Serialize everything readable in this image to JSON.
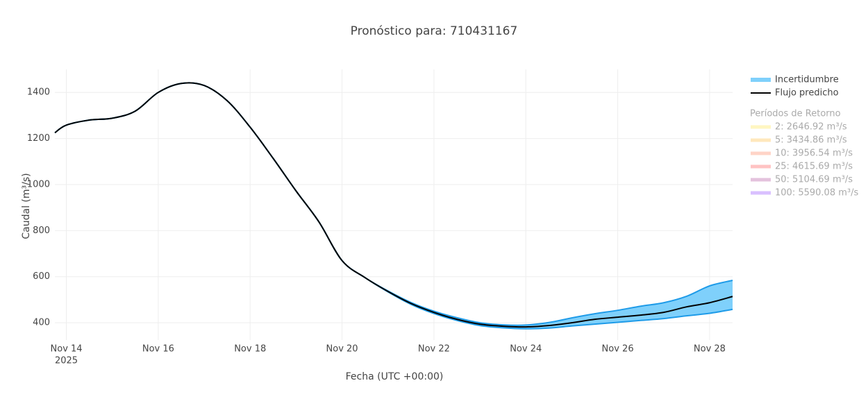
{
  "chart_data": {
    "type": "band-line",
    "title": "Pronóstico para: 710431167",
    "xlabel": "Fecha (UTC +00:00)",
    "ylabel": "Caudal (m³/s)",
    "x": [
      "2025-11-13T18:00",
      "2025-11-14T00:00",
      "2025-11-14T12:00",
      "2025-11-15T00:00",
      "2025-11-15T12:00",
      "2025-11-16T00:00",
      "2025-11-16T12:00",
      "2025-11-17T00:00",
      "2025-11-17T12:00",
      "2025-11-18T00:00",
      "2025-11-18T12:00",
      "2025-11-19T00:00",
      "2025-11-19T12:00",
      "2025-11-20T00:00",
      "2025-11-20T12:00",
      "2025-11-21T00:00",
      "2025-11-21T12:00",
      "2025-11-22T00:00",
      "2025-11-22T12:00",
      "2025-11-23T00:00",
      "2025-11-23T12:00",
      "2025-11-24T00:00",
      "2025-11-24T12:00",
      "2025-11-25T00:00",
      "2025-11-25T12:00",
      "2025-11-26T00:00",
      "2025-11-26T12:00",
      "2025-11-27T00:00",
      "2025-11-27T12:00",
      "2025-11-28T00:00",
      "2025-11-28T12:00"
    ],
    "series": [
      {
        "name": "Incertidumbre",
        "color": "#1e9be8",
        "fill": "#7fd0fb",
        "upper": [
          1225,
          1258,
          1280,
          1288,
          1319,
          1400,
          1439,
          1430,
          1364,
          1249,
          1114,
          972,
          837,
          670,
          596,
          538,
          488,
          450,
          422,
          400,
          391,
          390,
          401,
          421,
          439,
          454,
          472,
          487,
          515,
          560,
          584
        ],
        "lower": [
          1225,
          1258,
          1280,
          1288,
          1319,
          1400,
          1439,
          1430,
          1364,
          1249,
          1114,
          972,
          837,
          670,
          596,
          534,
          480,
          440,
          410,
          388,
          378,
          374,
          377,
          386,
          394,
          402,
          410,
          418,
          430,
          441,
          458
        ]
      },
      {
        "name": "Flujo predicho",
        "color": "#000000",
        "values": [
          1225,
          1258,
          1280,
          1288,
          1319,
          1400,
          1439,
          1430,
          1364,
          1249,
          1114,
          972,
          837,
          670,
          596,
          536,
          484,
          445,
          415,
          394,
          385,
          382,
          388,
          400,
          415,
          424,
          433,
          445,
          469,
          487,
          514
        ]
      }
    ],
    "return_periods": {
      "title": "Períodos de Retorno",
      "items": [
        {
          "name": "2: 2646.92 m³/s",
          "color": "#fff3a8"
        },
        {
          "name": "5: 3434.86 m³/s",
          "color": "#ffdfa0"
        },
        {
          "name": "10: 3956.54 m³/s",
          "color": "#ffc2b0"
        },
        {
          "name": "25: 4615.69 m³/s",
          "color": "#ffaaaa"
        },
        {
          "name": "50: 5104.69 m³/s",
          "color": "#d9a9cf"
        },
        {
          "name": "100: 5590.08 m³/s",
          "color": "#c9a6ff"
        }
      ]
    },
    "xlim": [
      "2025-11-13T18:00",
      "2025-11-28T12:00"
    ],
    "xticks": [
      {
        "value": "2025-11-14T00:00",
        "label": "Nov 14"
      },
      {
        "value": "2025-11-16T00:00",
        "label": "Nov 16"
      },
      {
        "value": "2025-11-18T00:00",
        "label": "Nov 18"
      },
      {
        "value": "2025-11-20T00:00",
        "label": "Nov 20"
      },
      {
        "value": "2025-11-22T00:00",
        "label": "Nov 22"
      },
      {
        "value": "2025-11-24T00:00",
        "label": "Nov 24"
      },
      {
        "value": "2025-11-26T00:00",
        "label": "Nov 26"
      },
      {
        "value": "2025-11-28T00:00",
        "label": "Nov 28"
      }
    ],
    "x_year": "2025",
    "ylim": [
      325,
      1500
    ],
    "yticks": [
      400,
      600,
      800,
      1000,
      1200,
      1400
    ],
    "grid": true
  }
}
